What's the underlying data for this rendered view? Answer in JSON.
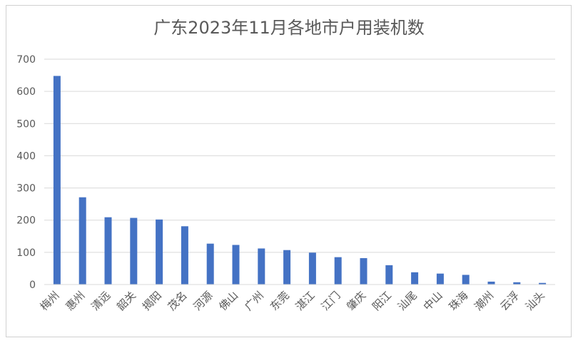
{
  "chart_data": {
    "type": "bar",
    "title": "广东2023年11月各地市户用装机数",
    "xlabel": "",
    "ylabel": "",
    "ylim": [
      0,
      700
    ],
    "yticks": [
      0,
      100,
      200,
      300,
      400,
      500,
      600,
      700
    ],
    "grid": true,
    "legend": "none",
    "bar_color": "#4472C4",
    "categories": [
      "梅州",
      "惠州",
      "清远",
      "韶关",
      "揭阳",
      "茂名",
      "河源",
      "佛山",
      "广州",
      "东莞",
      "湛江",
      "江门",
      "肇庆",
      "阳江",
      "汕尾",
      "中山",
      "珠海",
      "潮州",
      "云浮",
      "汕头"
    ],
    "values": [
      648,
      271,
      209,
      207,
      202,
      181,
      127,
      123,
      112,
      107,
      99,
      85,
      82,
      60,
      38,
      34,
      30,
      9,
      7,
      5
    ]
  }
}
